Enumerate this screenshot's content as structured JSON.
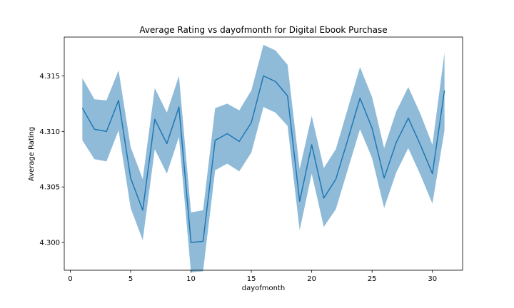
{
  "chart_data": {
    "type": "line",
    "title": "Average Rating vs dayofmonth for Digital Ebook Purchase",
    "xlabel": "dayofmonth",
    "ylabel": "Average Rating",
    "xlim": [
      -0.5,
      32.5
    ],
    "ylim": [
      4.2975,
      4.3185
    ],
    "xticks": [
      0,
      5,
      10,
      15,
      20,
      25,
      30
    ],
    "xtick_labels": [
      "0",
      "5",
      "10",
      "15",
      "20",
      "25",
      "30"
    ],
    "yticks": [
      4.3,
      4.305,
      4.31,
      4.315
    ],
    "ytick_labels": [
      "4.300",
      "4.305",
      "4.310",
      "4.315"
    ],
    "grid": false,
    "series": [
      {
        "color": "#1f77b4",
        "band_color": "#1f77b4",
        "x": [
          1,
          2,
          3,
          4,
          5,
          6,
          7,
          8,
          9,
          10,
          11,
          12,
          13,
          14,
          15,
          16,
          17,
          18,
          19,
          20,
          21,
          22,
          23,
          24,
          25,
          26,
          27,
          28,
          29,
          30,
          31
        ],
        "values": [
          4.3121,
          4.3102,
          4.31,
          4.3128,
          4.3058,
          4.3029,
          4.3111,
          4.3089,
          4.3122,
          4.3,
          4.3001,
          4.3092,
          4.3098,
          4.3091,
          4.3108,
          4.315,
          4.3145,
          4.3132,
          4.3037,
          4.3088,
          4.304,
          4.3057,
          4.3093,
          4.313,
          4.3103,
          4.3058,
          4.309,
          4.3112,
          4.3088,
          4.3062,
          4.3137
        ],
        "lower": [
          4.3092,
          4.3075,
          4.3073,
          4.3101,
          4.3031,
          4.3002,
          4.3084,
          4.3062,
          4.3095,
          4.2973,
          4.2974,
          4.3065,
          4.3071,
          4.3064,
          4.3081,
          4.3122,
          4.3117,
          4.3105,
          4.3011,
          4.3062,
          4.3014,
          4.303,
          4.3066,
          4.3102,
          4.3076,
          4.3031,
          4.3063,
          4.3085,
          4.3061,
          4.3035,
          4.3101
        ],
        "upper": [
          4.3148,
          4.3129,
          4.3128,
          4.3155,
          4.3086,
          4.3057,
          4.3139,
          4.3117,
          4.315,
          4.3027,
          4.3029,
          4.3121,
          4.3125,
          4.3119,
          4.3137,
          4.3178,
          4.3173,
          4.316,
          4.3066,
          4.3114,
          4.3067,
          4.3084,
          4.3121,
          4.3158,
          4.3131,
          4.3085,
          4.3118,
          4.314,
          4.3116,
          4.3088,
          4.3171
        ]
      }
    ]
  }
}
